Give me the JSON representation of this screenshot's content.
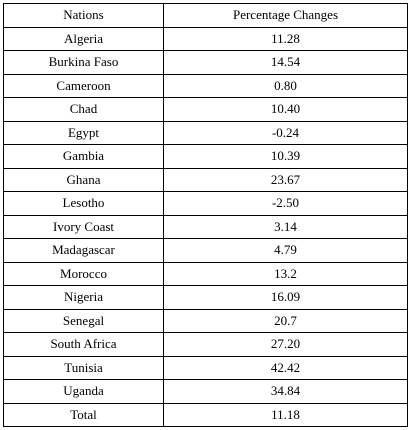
{
  "table": {
    "header": [
      "Nations",
      "Percentage Changes"
    ],
    "rows": [
      [
        "Algeria",
        "11.28"
      ],
      [
        "Burkina Faso",
        "14.54"
      ],
      [
        "Cameroon",
        "0.80"
      ],
      [
        "Chad",
        "10.40"
      ],
      [
        "Egypt",
        "-0.24"
      ],
      [
        "Gambia",
        "10.39"
      ],
      [
        "Ghana",
        "23.67"
      ],
      [
        "Lesotho",
        "-2.50"
      ],
      [
        "Ivory Coast",
        "3.14"
      ],
      [
        "Madagascar",
        "4.79"
      ],
      [
        "Morocco",
        "13.2"
      ],
      [
        "Nigeria",
        "16.09"
      ],
      [
        "Senegal",
        "20.7"
      ],
      [
        "South Africa",
        "27.20"
      ],
      [
        "Tunisia",
        "42.42"
      ],
      [
        "Uganda",
        "34.84"
      ],
      [
        "Total",
        "11.18"
      ]
    ]
  }
}
